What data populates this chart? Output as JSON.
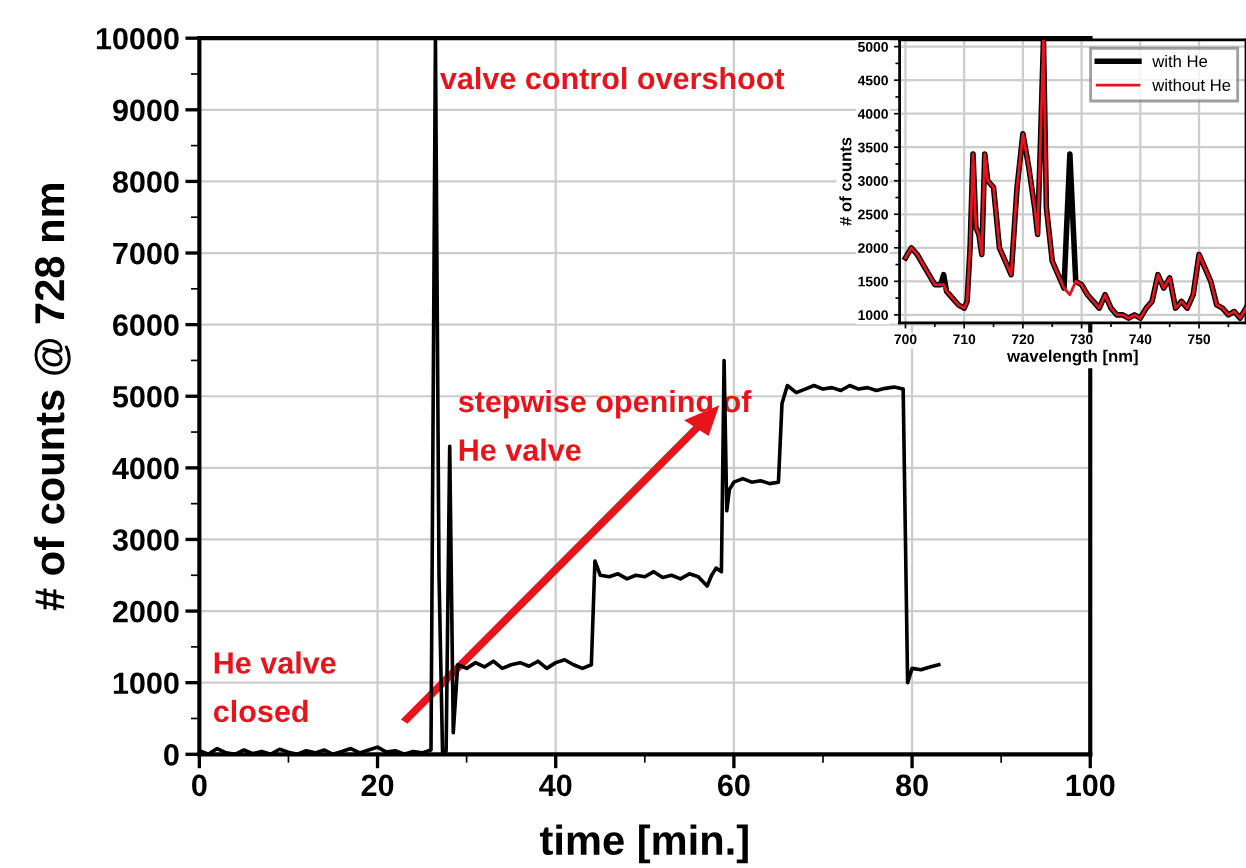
{
  "chart_data": [
    {
      "type": "line",
      "xlabel": "time [min.]",
      "ylabel": "# of counts @ 728 nm",
      "xlim": [
        0,
        100
      ],
      "ylim": [
        0,
        10000
      ],
      "xticks": [
        0,
        20,
        40,
        60,
        80,
        100
      ],
      "yticks": [
        0,
        1000,
        2000,
        3000,
        4000,
        5000,
        6000,
        7000,
        8000,
        9000,
        10000
      ],
      "grid": true,
      "legend": false,
      "line_style": "solid",
      "marker": "none",
      "annotations": [
        "valve control overshoot",
        "stepwise opening of\nHe valve",
        "He valve\nclosed"
      ],
      "series": [
        {
          "color": "#000000",
          "x": [
            0,
            1,
            2,
            3,
            4,
            5,
            6,
            7,
            8,
            9,
            10,
            11,
            12,
            13,
            14,
            15,
            16,
            17,
            18,
            19,
            20,
            21,
            22,
            23,
            24,
            25,
            26,
            26.5,
            26.9,
            27.3,
            27.7,
            28.1,
            28.5,
            29,
            30,
            31,
            32,
            33,
            34,
            35,
            36,
            37,
            38,
            39,
            40,
            41,
            42,
            43,
            44,
            44.4,
            45,
            46,
            47,
            48,
            49,
            50,
            51,
            52,
            53,
            54,
            55,
            56,
            57,
            57.5,
            58,
            58.6,
            58.9,
            59.2,
            59.5,
            60,
            61,
            62,
            63,
            64,
            65,
            65.4,
            66,
            67,
            68,
            69,
            70,
            71,
            72,
            73,
            74,
            75,
            76,
            77,
            78,
            79,
            79.5,
            80,
            81,
            82,
            83
          ],
          "values": [
            50,
            0,
            80,
            20,
            0,
            60,
            10,
            40,
            0,
            70,
            30,
            0,
            50,
            20,
            60,
            0,
            40,
            80,
            20,
            60,
            100,
            30,
            50,
            0,
            40,
            20,
            60,
            10000,
            2500,
            0,
            50,
            4300,
            300,
            1250,
            1200,
            1280,
            1220,
            1300,
            1200,
            1250,
            1280,
            1230,
            1300,
            1200,
            1280,
            1320,
            1250,
            1200,
            1250,
            2700,
            2500,
            2480,
            2520,
            2450,
            2500,
            2480,
            2550,
            2470,
            2500,
            2450,
            2520,
            2480,
            2350,
            2500,
            2600,
            2550,
            5500,
            3400,
            3700,
            3800,
            3850,
            3800,
            3820,
            3780,
            3800,
            4900,
            5150,
            5050,
            5100,
            5150,
            5100,
            5120,
            5080,
            5150,
            5100,
            5120,
            5080,
            5110,
            5130,
            5100,
            1000,
            1200,
            1180,
            1220,
            1250
          ]
        }
      ]
    },
    {
      "type": "line",
      "xlabel": "wavelength [nm]",
      "ylabel": "# of counts",
      "xlim": [
        699,
        758
      ],
      "ylim": [
        880,
        5100
      ],
      "xticks": [
        700,
        710,
        720,
        730,
        740,
        750
      ],
      "yticks": [
        1000,
        1500,
        2000,
        2500,
        3000,
        3500,
        4000,
        4500,
        5000
      ],
      "grid": true,
      "legend": "top right",
      "line_style": "solid",
      "marker": "none",
      "x": [
        700,
        701,
        702,
        703,
        704,
        705,
        706,
        706.5,
        707,
        708,
        709,
        710,
        710.5,
        711,
        711.5,
        712,
        712.5,
        713,
        713.5,
        714,
        715,
        716,
        717,
        718,
        719,
        720,
        721,
        722,
        722.5,
        723,
        723.5,
        724,
        725,
        726,
        727,
        728,
        729,
        730,
        731,
        732,
        733,
        734,
        735,
        736,
        737,
        738,
        739,
        740,
        741,
        742,
        743,
        744,
        745,
        746,
        747,
        748,
        749,
        750,
        751,
        752,
        753,
        754,
        755,
        756,
        757,
        758
      ],
      "series": [
        {
          "name": "with He",
          "color": "#000000",
          "values": [
            1850,
            2000,
            1900,
            1750,
            1600,
            1450,
            1450,
            1600,
            1350,
            1250,
            1150,
            1100,
            1200,
            2000,
            3400,
            2300,
            2200,
            1900,
            3400,
            3000,
            2900,
            2000,
            1800,
            1600,
            2900,
            3700,
            3200,
            2600,
            2200,
            3600,
            5100,
            2600,
            1800,
            1600,
            1400,
            3400,
            1500,
            1450,
            1300,
            1200,
            1100,
            1300,
            1100,
            1000,
            1000,
            950,
            1000,
            950,
            1100,
            1200,
            1600,
            1400,
            1550,
            1100,
            1200,
            1100,
            1300,
            1900,
            1700,
            1500,
            1150,
            1100,
            1000,
            1050,
            950,
            1100
          ]
        },
        {
          "name": "without He",
          "color": "#e8141c",
          "values": [
            1850,
            2000,
            1900,
            1750,
            1600,
            1450,
            1450,
            1450,
            1350,
            1250,
            1150,
            1100,
            1200,
            2000,
            3400,
            2300,
            2200,
            1900,
            3400,
            3000,
            2900,
            2000,
            1800,
            1600,
            2900,
            3700,
            3200,
            2600,
            2200,
            3600,
            5100,
            2600,
            1800,
            1600,
            1400,
            1300,
            1500,
            1450,
            1300,
            1200,
            1100,
            1300,
            1100,
            1000,
            1000,
            950,
            1000,
            950,
            1100,
            1200,
            1600,
            1400,
            1550,
            1100,
            1200,
            1100,
            1300,
            1900,
            1700,
            1500,
            1150,
            1100,
            1000,
            1050,
            950,
            1100
          ]
        }
      ]
    }
  ]
}
